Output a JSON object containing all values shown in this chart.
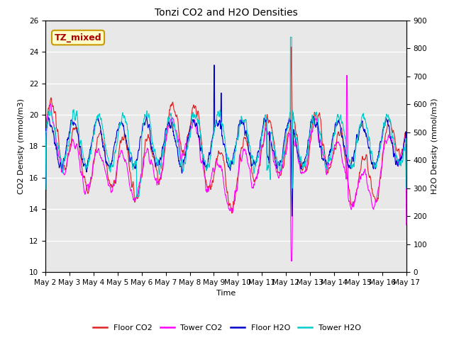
{
  "title": "Tonzi CO2 and H2O Densities",
  "xlabel": "Time",
  "ylabel_left": "CO2 Density (mmol/m3)",
  "ylabel_right": "H2O Density (mmol/m3)",
  "annotation_text": "TZ_mixed",
  "annotation_color": "#aa0000",
  "annotation_bg": "#ffffcc",
  "annotation_border": "#cc9900",
  "ylim_left": [
    10,
    26
  ],
  "ylim_right": [
    0,
    900
  ],
  "yticks_left": [
    10,
    12,
    14,
    16,
    18,
    20,
    22,
    24,
    26
  ],
  "yticks_right": [
    0,
    100,
    200,
    300,
    400,
    500,
    600,
    700,
    800,
    900
  ],
  "xtick_labels": [
    "May 2",
    "May 3",
    "May 4",
    "May 5",
    "May 6",
    "May 7",
    "May 8",
    "May 9",
    "May 10",
    "May 11",
    "May 12",
    "May 13",
    "May 14",
    "May 15",
    "May 16",
    "May 17"
  ],
  "colors": {
    "floor_co2": "#dd2222",
    "tower_co2": "#ff00ff",
    "floor_h2o": "#0000cc",
    "tower_h2o": "#00cccc"
  },
  "legend_labels": [
    "Floor CO2",
    "Tower CO2",
    "Floor H2O",
    "Tower H2O"
  ],
  "bg_color": "#e8e8e8",
  "grid_color": "white",
  "n_points": 1440,
  "seed": 7
}
